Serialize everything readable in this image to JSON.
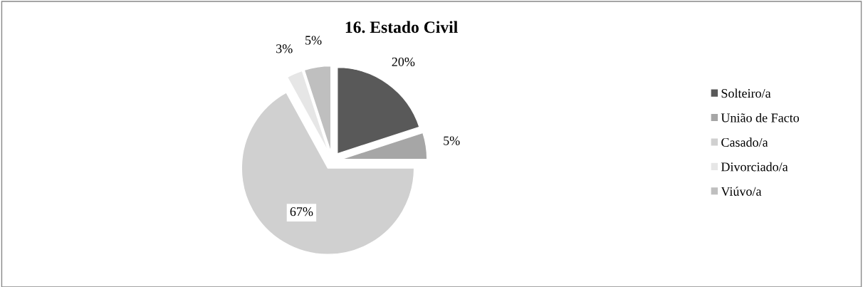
{
  "chart_data": {
    "type": "pie",
    "title": "16. Estado Civil",
    "categories": [
      "Solteiro/a",
      "União de Facto",
      "Casado/a",
      "Divorciado/a",
      "Viúvo/a"
    ],
    "values": [
      20,
      5,
      67,
      3,
      5
    ],
    "colors": [
      "#595959",
      "#a6a6a6",
      "#d0d0d0",
      "#e6e6e6",
      "#bfbfbf"
    ],
    "value_labels": [
      "20%",
      "5%",
      "67%",
      "3%",
      "5%"
    ],
    "legend": "right"
  }
}
